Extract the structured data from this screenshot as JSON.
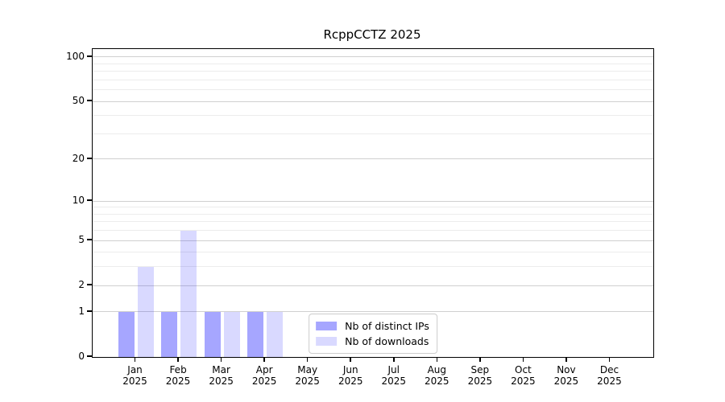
{
  "title": "RcppCCTZ 2025",
  "colors": {
    "background": "#ffffff",
    "axis": "#000000",
    "grid_major": "#d0d0d0",
    "grid_minor": "#ececec",
    "legend_border": "#cccccc",
    "series_distinct_ips": "rgba(0,0,255,0.35)",
    "series_downloads": "rgba(0,0,255,0.15)"
  },
  "chart_data": {
    "type": "bar",
    "title": "RcppCCTZ 2025",
    "categories": [
      {
        "month": "Jan",
        "year": "2025"
      },
      {
        "month": "Feb",
        "year": "2025"
      },
      {
        "month": "Mar",
        "year": "2025"
      },
      {
        "month": "Apr",
        "year": "2025"
      },
      {
        "month": "May",
        "year": "2025"
      },
      {
        "month": "Jun",
        "year": "2025"
      },
      {
        "month": "Jul",
        "year": "2025"
      },
      {
        "month": "Aug",
        "year": "2025"
      },
      {
        "month": "Sep",
        "year": "2025"
      },
      {
        "month": "Oct",
        "year": "2025"
      },
      {
        "month": "Nov",
        "year": "2025"
      },
      {
        "month": "Dec",
        "year": "2025"
      }
    ],
    "series": [
      {
        "name": "Nb of distinct IPs",
        "color": "rgba(0,0,255,0.35)",
        "values": [
          1,
          1,
          1,
          1,
          0,
          0,
          0,
          0,
          0,
          0,
          0,
          0
        ]
      },
      {
        "name": "Nb of downloads",
        "color": "rgba(0,0,255,0.15)",
        "values": [
          3,
          6,
          1,
          1,
          0,
          0,
          0,
          0,
          0,
          0,
          0,
          0
        ]
      }
    ],
    "xlabel": "",
    "ylabel": "",
    "yscale": "log1p",
    "ylim": [
      0,
      113.3
    ],
    "yticks": [
      0,
      1,
      2,
      5,
      10,
      20,
      50,
      100
    ],
    "minor_gridlines": [
      3,
      4,
      6,
      7,
      8,
      9,
      30,
      40,
      60,
      70,
      80,
      90
    ],
    "grid": "horizontal only",
    "legend_position": "lower center"
  }
}
